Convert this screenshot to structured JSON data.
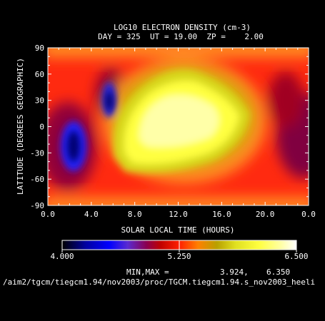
{
  "chart_data": {
    "type": "heatmap",
    "title": "LOG10 ELECTRON DENSITY (cm-3)",
    "subtitle": "DAY = 325  UT = 19.00  ZP =    2.00",
    "xlabel": "SOLAR LOCAL TIME (HOURS)",
    "ylabel": "LATITUDE (DEGREES GEOGRAPHIC)",
    "xlim": [
      0,
      24
    ],
    "ylim": [
      -90,
      90
    ],
    "x_ticks": [
      "0.0",
      "4.0",
      "8.0",
      "12.0",
      "16.0",
      "20.0",
      "0.0"
    ],
    "y_ticks": [
      "90",
      "60",
      "30",
      "0",
      "-30",
      "-60",
      "-90"
    ],
    "colorbar": {
      "min_label": "4.000",
      "mid_label": "5.250",
      "max_label": "6.500",
      "range": [
        4.0,
        6.5
      ]
    },
    "minmax_label": "MIN,MAX =",
    "min_value": "3.924,",
    "max_value": "6.350",
    "features": [
      {
        "label": "dayside maximum",
        "x": 12.5,
        "y": 5,
        "value": 6.3
      },
      {
        "label": "post-midnight trough south",
        "x": 2.3,
        "y": -20,
        "value": 4.0
      },
      {
        "label": "pre-dawn trough north",
        "x": 5.5,
        "y": 30,
        "value": 4.1
      }
    ],
    "grid": false
  },
  "footer_path": "/aim2/tgcm/tiegcm1.94/nov2003/proc/TGCM.tiegcm1.94.s_nov2003_heeli"
}
